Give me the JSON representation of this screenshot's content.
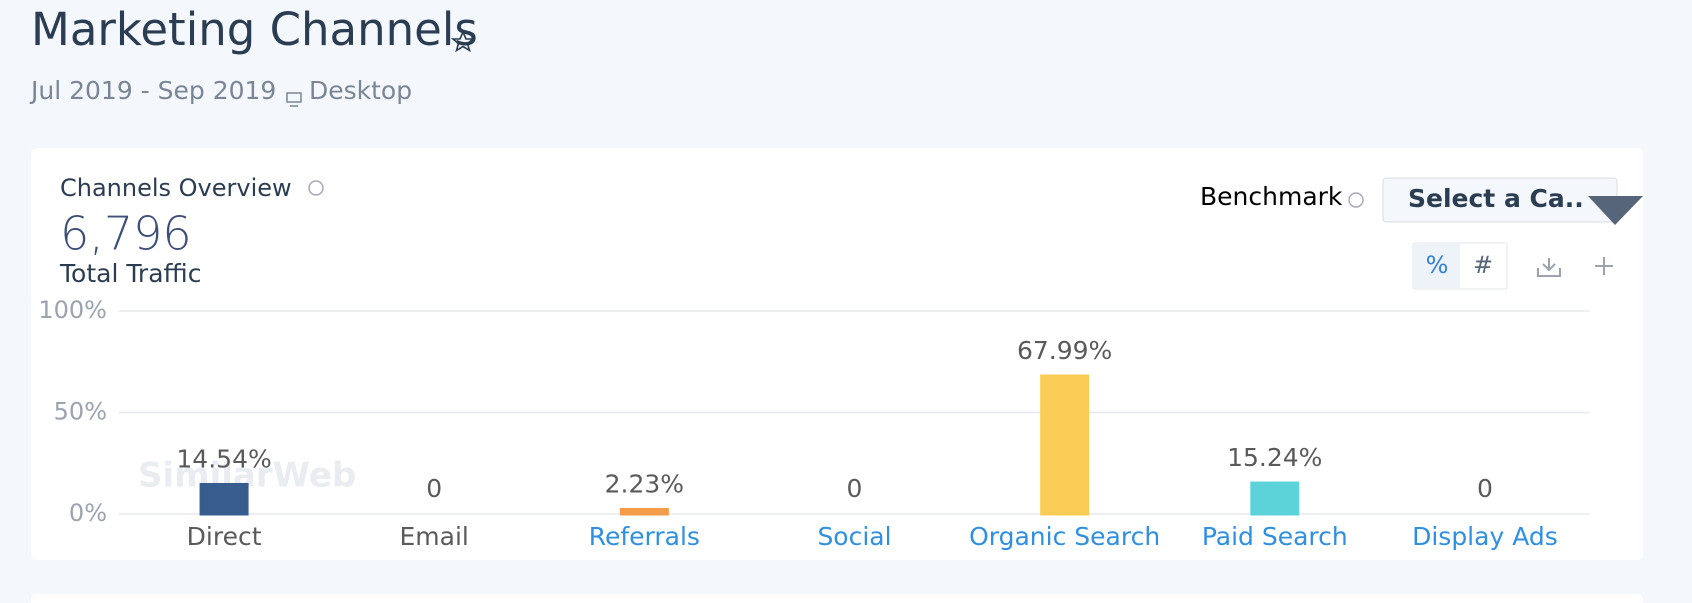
{
  "header": {
    "title": "Marketing Channels",
    "date_range": "Jul 2019 - Sep 2019",
    "device": "Desktop"
  },
  "card": {
    "title": "Channels Overview",
    "total": "6,796",
    "total_label": "Total Traffic",
    "benchmark_label": "Benchmark",
    "benchmark_select": "Select a Ca..",
    "toggle_percent": "%",
    "toggle_number": "#",
    "watermark": "SimilarWeb"
  },
  "chart_data": {
    "type": "bar",
    "categories": [
      "Direct",
      "Email",
      "Referrals",
      "Social",
      "Organic Search",
      "Paid Search",
      "Display Ads"
    ],
    "values": [
      14.54,
      0,
      2.23,
      0,
      67.99,
      15.24,
      0
    ],
    "value_labels": [
      "14.54%",
      "0",
      "2.23%",
      "0",
      "67.99%",
      "15.24%",
      "0"
    ],
    "colors": [
      "#365d8e",
      "#4fc8c0",
      "#f59c4a",
      "#e4605f",
      "#f9cd55",
      "#5cd3d9",
      "#2a9c9f"
    ],
    "ylim": [
      0,
      100
    ],
    "yticks": [
      {
        "value": 0,
        "label": "0%"
      },
      {
        "value": 50,
        "label": "50%"
      },
      {
        "value": 100,
        "label": "100%"
      }
    ],
    "grid": true
  }
}
